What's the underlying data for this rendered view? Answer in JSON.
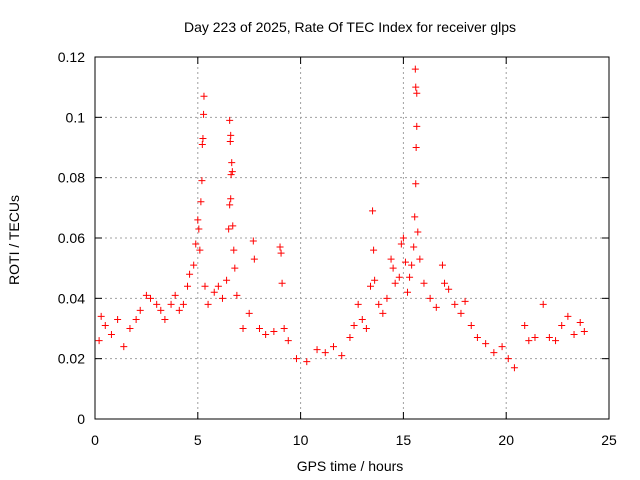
{
  "chart_data": {
    "type": "scatter",
    "title": "Day 223 of 2025, Rate Of TEC Index for receiver glps",
    "xlabel": "GPS time / hours",
    "ylabel": "ROTI / TECUs",
    "xlim": [
      0,
      25
    ],
    "ylim": [
      0,
      0.12
    ],
    "x_ticks": [
      0,
      5,
      10,
      15,
      20,
      25
    ],
    "y_ticks": [
      0,
      0.02,
      0.04,
      0.06,
      0.08,
      0.1,
      0.12
    ],
    "x_tick_labels": [
      "0",
      "5",
      "10",
      "15",
      "20",
      "25"
    ],
    "y_tick_labels": [
      "0",
      "0.02",
      "0.04",
      "0.06",
      "0.08",
      "0.1",
      "0.12"
    ],
    "grid": true,
    "marker": "+",
    "color": "#ff0000",
    "series": [
      {
        "name": "ROTI",
        "points": [
          [
            0.2,
            0.026
          ],
          [
            0.3,
            0.034
          ],
          [
            0.5,
            0.031
          ],
          [
            0.8,
            0.028
          ],
          [
            1.1,
            0.033
          ],
          [
            1.4,
            0.024
          ],
          [
            1.7,
            0.03
          ],
          [
            2.0,
            0.033
          ],
          [
            2.2,
            0.036
          ],
          [
            2.5,
            0.041
          ],
          [
            2.7,
            0.04
          ],
          [
            3.0,
            0.038
          ],
          [
            3.2,
            0.036
          ],
          [
            3.4,
            0.033
          ],
          [
            3.7,
            0.038
          ],
          [
            3.9,
            0.041
          ],
          [
            4.1,
            0.036
          ],
          [
            4.3,
            0.038
          ],
          [
            4.5,
            0.044
          ],
          [
            4.6,
            0.048
          ],
          [
            4.8,
            0.051
          ],
          [
            4.9,
            0.058
          ],
          [
            5.0,
            0.066
          ],
          [
            5.05,
            0.063
          ],
          [
            5.1,
            0.056
          ],
          [
            5.15,
            0.072
          ],
          [
            5.2,
            0.079
          ],
          [
            5.22,
            0.091
          ],
          [
            5.25,
            0.093
          ],
          [
            5.3,
            0.107
          ],
          [
            5.28,
            0.101
          ],
          [
            5.35,
            0.044
          ],
          [
            5.5,
            0.038
          ],
          [
            5.8,
            0.042
          ],
          [
            6.0,
            0.044
          ],
          [
            6.2,
            0.04
          ],
          [
            6.4,
            0.046
          ],
          [
            6.5,
            0.063
          ],
          [
            6.55,
            0.071
          ],
          [
            6.6,
            0.073
          ],
          [
            6.62,
            0.081
          ],
          [
            6.65,
            0.085
          ],
          [
            6.58,
            0.092
          ],
          [
            6.6,
            0.094
          ],
          [
            6.55,
            0.099
          ],
          [
            6.68,
            0.082
          ],
          [
            6.7,
            0.064
          ],
          [
            6.75,
            0.056
          ],
          [
            6.8,
            0.05
          ],
          [
            6.9,
            0.041
          ],
          [
            7.2,
            0.03
          ],
          [
            7.5,
            0.035
          ],
          [
            7.7,
            0.059
          ],
          [
            7.75,
            0.053
          ],
          [
            8.0,
            0.03
          ],
          [
            8.3,
            0.028
          ],
          [
            8.7,
            0.029
          ],
          [
            9.0,
            0.057
          ],
          [
            9.05,
            0.055
          ],
          [
            9.1,
            0.045
          ],
          [
            9.2,
            0.03
          ],
          [
            9.4,
            0.026
          ],
          [
            9.8,
            0.02
          ],
          [
            10.3,
            0.019
          ],
          [
            10.8,
            0.023
          ],
          [
            11.2,
            0.022
          ],
          [
            11.6,
            0.024
          ],
          [
            12.0,
            0.021
          ],
          [
            12.4,
            0.027
          ],
          [
            12.6,
            0.031
          ],
          [
            12.8,
            0.038
          ],
          [
            13.0,
            0.033
          ],
          [
            13.2,
            0.03
          ],
          [
            13.4,
            0.044
          ],
          [
            13.5,
            0.069
          ],
          [
            13.55,
            0.056
          ],
          [
            13.6,
            0.046
          ],
          [
            13.8,
            0.038
          ],
          [
            14.0,
            0.035
          ],
          [
            14.2,
            0.04
          ],
          [
            14.4,
            0.053
          ],
          [
            14.5,
            0.05
          ],
          [
            14.6,
            0.045
          ],
          [
            14.8,
            0.047
          ],
          [
            14.9,
            0.058
          ],
          [
            15.0,
            0.06
          ],
          [
            15.1,
            0.052
          ],
          [
            15.2,
            0.042
          ],
          [
            15.3,
            0.047
          ],
          [
            15.4,
            0.051
          ],
          [
            15.5,
            0.057
          ],
          [
            15.55,
            0.067
          ],
          [
            15.6,
            0.078
          ],
          [
            15.62,
            0.09
          ],
          [
            15.65,
            0.097
          ],
          [
            15.6,
            0.11
          ],
          [
            15.65,
            0.108
          ],
          [
            15.58,
            0.116
          ],
          [
            15.7,
            0.062
          ],
          [
            15.8,
            0.053
          ],
          [
            16.0,
            0.045
          ],
          [
            16.3,
            0.04
          ],
          [
            16.6,
            0.037
          ],
          [
            16.9,
            0.051
          ],
          [
            17.0,
            0.045
          ],
          [
            17.2,
            0.043
          ],
          [
            17.5,
            0.038
          ],
          [
            17.8,
            0.035
          ],
          [
            18.0,
            0.039
          ],
          [
            18.3,
            0.031
          ],
          [
            18.6,
            0.027
          ],
          [
            19.0,
            0.025
          ],
          [
            19.4,
            0.022
          ],
          [
            19.8,
            0.024
          ],
          [
            20.1,
            0.02
          ],
          [
            20.4,
            0.017
          ],
          [
            20.9,
            0.031
          ],
          [
            21.1,
            0.026
          ],
          [
            21.4,
            0.027
          ],
          [
            21.8,
            0.038
          ],
          [
            22.1,
            0.027
          ],
          [
            22.4,
            0.026
          ],
          [
            22.7,
            0.031
          ],
          [
            23.0,
            0.034
          ],
          [
            23.3,
            0.028
          ],
          [
            23.6,
            0.032
          ],
          [
            23.8,
            0.029
          ]
        ]
      }
    ]
  }
}
